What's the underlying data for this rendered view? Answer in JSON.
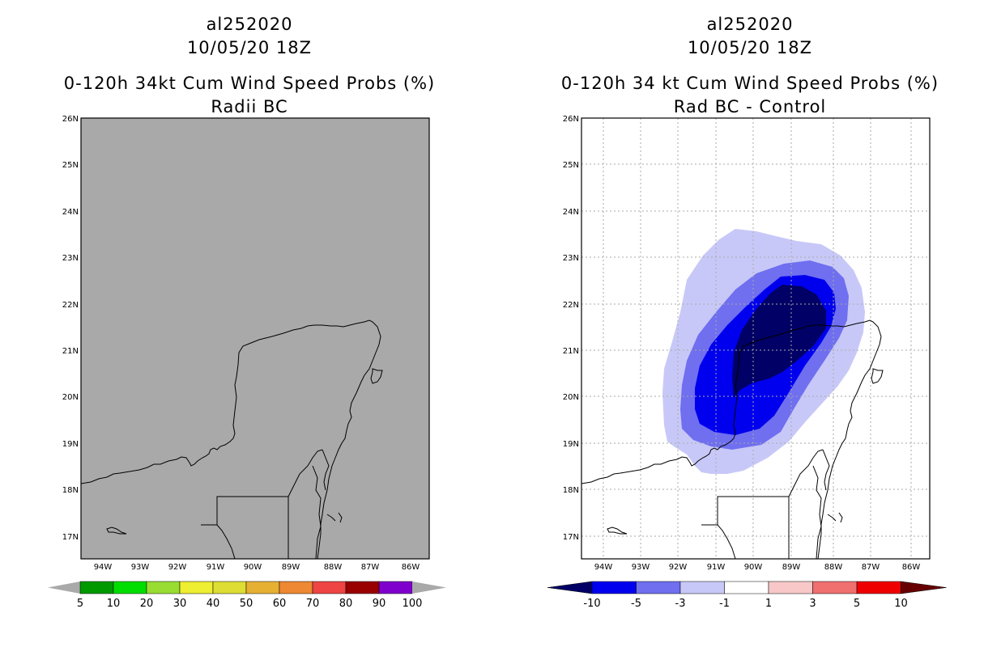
{
  "left_panel": {
    "storm_id": "al252020",
    "datetime": "10/05/20 18Z",
    "product": "0-120h 34kt Cum Wind Speed Probs (%)",
    "subtitle": "Radii BC",
    "field_color": "#a9a9a9",
    "colorbar": {
      "labels": [
        "5",
        "10",
        "20",
        "30",
        "40",
        "50",
        "60",
        "70",
        "80",
        "90",
        "100"
      ],
      "colors": [
        "#009900",
        "#00dd00",
        "#99dd33",
        "#eeee33",
        "#dddd33",
        "#e6b033",
        "#ee8833",
        "#ee4444",
        "#990000",
        "#7f00cc"
      ]
    }
  },
  "right_panel": {
    "storm_id": "al252020",
    "datetime": "10/05/20 18Z",
    "product": "0-120h 34 kt Cum Wind Speed Probs (%)",
    "subtitle": "Rad BC - Control",
    "colorbar": {
      "labels": [
        "-10",
        "-5",
        "-3",
        "-1",
        "1",
        "3",
        "5",
        "10"
      ],
      "colors": [
        "#000066",
        "#0000ee",
        "#6f6ff0",
        "#c8c8f8",
        "#ffffff",
        "#f8c8c8",
        "#f06f6f",
        "#ee0000",
        "#660000"
      ]
    },
    "contour_levels": [
      {
        "level": "-1 to 1 boundary (<-1)",
        "color": "#c8c8f8"
      },
      {
        "level": "-3",
        "color": "#6f6ff0"
      },
      {
        "level": "-5",
        "color": "#0000ee"
      },
      {
        "level": "-10",
        "color": "#000066"
      }
    ]
  },
  "map": {
    "lat_labels": [
      "26N",
      "25N",
      "24N",
      "23N",
      "22N",
      "21N",
      "20N",
      "19N",
      "18N",
      "17N"
    ],
    "lon_labels": [
      "94W",
      "93W",
      "92W",
      "91W",
      "90W",
      "89W",
      "88W",
      "87W",
      "86W"
    ]
  }
}
